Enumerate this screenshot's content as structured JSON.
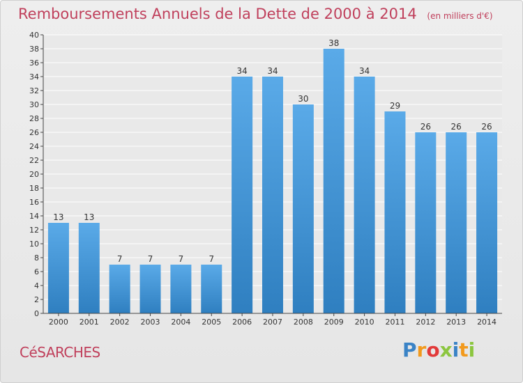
{
  "title": "Remboursements Annuels de la Dette de 2000 à 2014",
  "unit": "(en milliers d'€)",
  "city": "CéSARCHES",
  "logo": {
    "letters": [
      "P",
      "r",
      "o",
      "x",
      "i",
      "t",
      "i"
    ],
    "colors": [
      "#3a83c6",
      "#f29a1d",
      "#e23a3a",
      "#8cc63f",
      "#3a83c6",
      "#f29a1d",
      "#8cc63f"
    ]
  },
  "colors": {
    "bar_top": "#5aaae8",
    "bar_bottom": "#2f7fc0",
    "title": "#c0405c"
  },
  "chart_data": {
    "type": "bar",
    "categories": [
      "2000",
      "2001",
      "2002",
      "2003",
      "2004",
      "2005",
      "2006",
      "2007",
      "2008",
      "2009",
      "2010",
      "2011",
      "2012",
      "2013",
      "2014"
    ],
    "values": [
      13,
      13,
      7,
      7,
      7,
      7,
      34,
      34,
      30,
      38,
      34,
      29,
      26,
      26,
      26
    ],
    "ylim": [
      0,
      40
    ],
    "yticks": [
      0,
      2,
      4,
      6,
      8,
      10,
      12,
      14,
      16,
      18,
      20,
      22,
      24,
      26,
      28,
      30,
      32,
      34,
      36,
      38,
      40
    ],
    "grid": true,
    "data_labels": true
  }
}
